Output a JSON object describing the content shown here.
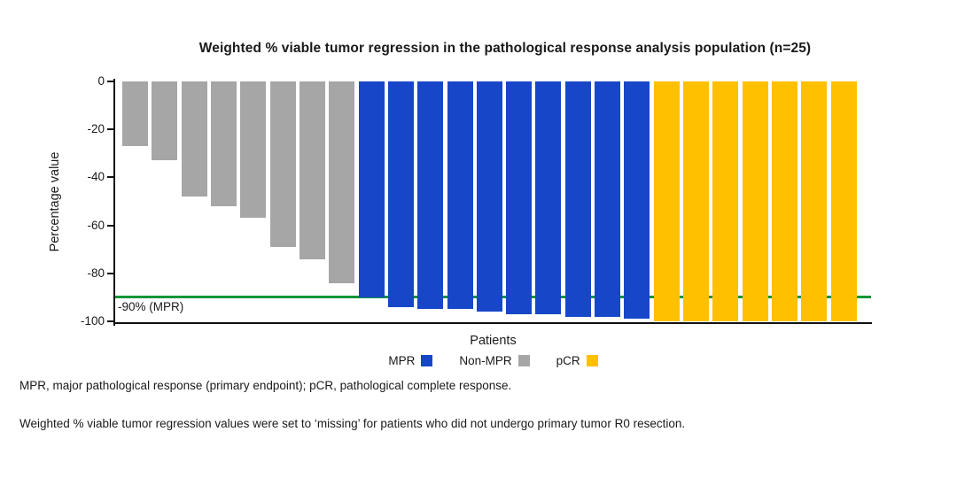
{
  "title": "Weighted % viable tumor regression in the pathological response analysis population (n=25)",
  "y_axis": {
    "label": "Percentage value",
    "ticks": [
      0,
      -20,
      -40,
      -60,
      -80,
      -100
    ],
    "min": -100,
    "max": 0
  },
  "x_axis": {
    "label": "Patients"
  },
  "reference_line": {
    "value": -90,
    "label": "-90% (MPR)",
    "color": "#129539"
  },
  "colors": {
    "mpr_blue": "#1747C8",
    "non_mpr_gray": "#A6A6A6",
    "pcr_gold": "#FFC000",
    "axis_black": "#111111"
  },
  "legend": [
    {
      "label": "MPR",
      "color": "#1747C8"
    },
    {
      "label": "Non-MPR",
      "color": "#A6A6A6"
    },
    {
      "label": "pCR",
      "color": "#FFC000"
    }
  ],
  "footnotes": [
    "MPR, major pathological response (primary endpoint); pCR, pathological complete response.",
    "Weighted % viable tumor regression values were set to ‘missing’ for patients who did not undergo primary tumor R0 resection."
  ],
  "chart_data": {
    "type": "bar",
    "title": "Weighted % viable tumor regression in the pathological response analysis population (n=25)",
    "xlabel": "Patients",
    "ylabel": "Percentage value",
    "ylim": [
      -100,
      0
    ],
    "grid": false,
    "legend_position": "bottom",
    "n_patients": 25,
    "annotation": "-90% (MPR) threshold line at y = -90",
    "series": [
      {
        "name": "Non-MPR",
        "color": "#A6A6A6",
        "values": [
          -27,
          -33,
          -48,
          -52,
          -57,
          -69,
          -74,
          -84
        ]
      },
      {
        "name": "MPR",
        "color": "#1747C8",
        "values": [
          -90,
          -94,
          -95,
          -95,
          -96,
          -97,
          -97,
          -98,
          -98,
          -99
        ]
      },
      {
        "name": "pCR",
        "color": "#FFC000",
        "values": [
          -100,
          -100,
          -100,
          -100,
          -100,
          -100,
          -100
        ]
      }
    ]
  }
}
